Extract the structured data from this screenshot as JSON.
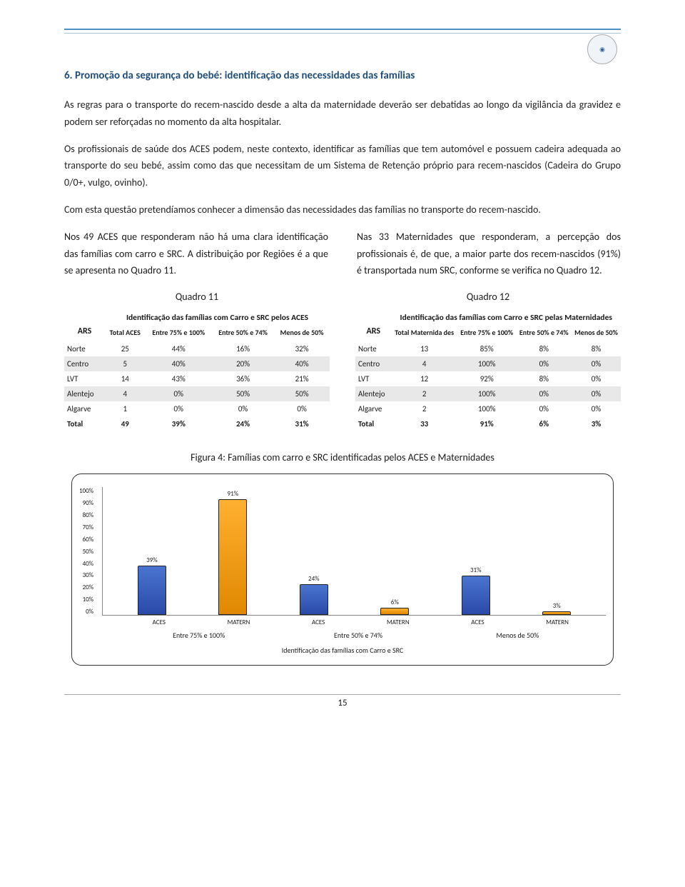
{
  "section_title": "6.  Promoção da segurança do bebé: identificação das necessidades das famílias",
  "para1": "As regras para o transporte do recem-nascido desde a alta da maternidade deverão ser debatidas ao longo da vigilância da gravidez e podem ser reforçadas no momento da alta hospitalar.",
  "para2": "Os profissionais de saúde dos ACES podem, neste contexto, identificar as famílias que tem automóvel e possuem cadeira adequada ao transporte do seu bebé, assim como das que necessitam de um Sistema de Retenção próprio para recem-nascidos (Cadeira do Grupo 0/0+, vulgo, ovinho).",
  "para3": "Com esta questão pretendíamos conhecer a dimensão das necessidades das famílias no transporte do recem-nascido.",
  "left_col": "Nos 49 ACES que responderam não há uma clara identificação das famílias com carro e SRC. A distribuição por Regiões é a que se apresenta no Quadro 11.",
  "right_col": "Nas 33 Maternidades que responderam, a percepção dos profissionais é, de que, a maior parte dos recem-nascidos (91%) é transportada num SRC, conforme se verifica no Quadro 12.",
  "quadro11_title": "Quadro 11",
  "quadro12_title": "Quadro 12",
  "t11": {
    "ars": "ARS",
    "sup": "Identificação das famílias com Carro e SRC pelos ACES",
    "cols": [
      "Total ACES",
      "Entre 75% e 100%",
      "Entre 50% e 74%",
      "Menos de 50%"
    ],
    "rows": [
      [
        "Norte",
        "25",
        "44%",
        "16%",
        "32%"
      ],
      [
        "Centro",
        "5",
        "40%",
        "20%",
        "40%"
      ],
      [
        "LVT",
        "14",
        "43%",
        "36%",
        "21%"
      ],
      [
        "Alentejo",
        "4",
        "0%",
        "50%",
        "50%"
      ],
      [
        "Algarve",
        "1",
        "0%",
        "0%",
        "0%"
      ],
      [
        "Total",
        "49",
        "39%",
        "24%",
        "31%"
      ]
    ]
  },
  "t12": {
    "ars": "ARS",
    "sup": "Identificação das famílias com Carro e SRC pelas Maternidades",
    "cols": [
      "Total Maternida des",
      "Entre 75% e 100%",
      "Entre 50% e 74%",
      "Menos de 50%"
    ],
    "rows": [
      [
        "Norte",
        "13",
        "85%",
        "8%",
        "8%"
      ],
      [
        "Centro",
        "4",
        "100%",
        "0%",
        "0%"
      ],
      [
        "LVT",
        "12",
        "92%",
        "8%",
        "0%"
      ],
      [
        "Alentejo",
        "2",
        "100%",
        "0%",
        "0%"
      ],
      [
        "Algarve",
        "2",
        "100%",
        "0%",
        "0%"
      ],
      [
        "Total",
        "33",
        "91%",
        "6%",
        "3%"
      ]
    ]
  },
  "figure_title": "Figura 4: Famílias com carro e SRC identificadas pelos ACES e Maternidades",
  "chart": {
    "ylim": 100,
    "yticks": [
      "100%",
      "90%",
      "80%",
      "70%",
      "60%",
      "50%",
      "40%",
      "30%",
      "20%",
      "10%",
      "0%"
    ],
    "bars": [
      {
        "label": "39%",
        "value": 39,
        "color": "blue",
        "x": "ACES"
      },
      {
        "label": "91%",
        "value": 91,
        "color": "orange",
        "x": "MATERN"
      },
      {
        "label": "24%",
        "value": 24,
        "color": "blue",
        "x": "ACES"
      },
      {
        "label": "6%",
        "value": 6,
        "color": "orange",
        "x": "MATERN"
      },
      {
        "label": "31%",
        "value": 31,
        "color": "blue",
        "x": "ACES"
      },
      {
        "label": "3%",
        "value": 3,
        "color": "orange",
        "x": "MATERN"
      }
    ],
    "groups": [
      "Entre 75% e 100%",
      "Entre 50% e 74%",
      "Menos de 50%"
    ],
    "caption": "Identificação das famílias com Carro e SRC"
  },
  "page_num": "15"
}
